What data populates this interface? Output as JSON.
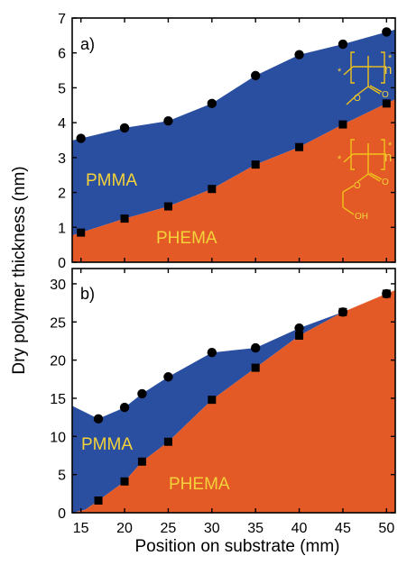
{
  "figure": {
    "ylabel": "Dry polymer thickness   (nm)",
    "xlabel": "Position on substrate   (mm)",
    "colors": {
      "pmma_fill": "#2a4ea0",
      "phema_fill": "#e45a27",
      "label_text": "#f3d23a",
      "structure_stroke": "#f0c21a",
      "axis": "#000000"
    },
    "structure_labels": {
      "pmma_n": "n",
      "phema_n": "n",
      "ester_o": "O",
      "hydroxyl": "OH",
      "star": "*"
    }
  },
  "chart_data": [
    {
      "type": "area",
      "panel_label": "a)",
      "xlim": [
        14,
        51
      ],
      "ylim": [
        0,
        7
      ],
      "xticks": [
        15,
        20,
        25,
        30,
        35,
        40,
        45,
        50
      ],
      "yticks": [
        0,
        1,
        2,
        3,
        4,
        5,
        6,
        7
      ],
      "region_labels": [
        "PMMA",
        "PHEMA"
      ],
      "series": [
        {
          "marker": "circle",
          "x": [
            15,
            20,
            25,
            30,
            35,
            40,
            45,
            50
          ],
          "values": [
            3.55,
            3.85,
            4.05,
            4.55,
            5.35,
            5.95,
            6.25,
            6.6
          ]
        },
        {
          "marker": "square",
          "x": [
            15,
            20,
            25,
            30,
            35,
            40,
            45,
            50
          ],
          "values": [
            0.85,
            1.25,
            1.6,
            2.1,
            2.8,
            3.3,
            3.95,
            4.55
          ]
        }
      ]
    },
    {
      "type": "area",
      "panel_label": "b)",
      "xlim": [
        14,
        51
      ],
      "ylim": [
        0,
        32
      ],
      "xticks": [
        15,
        20,
        25,
        30,
        35,
        40,
        45,
        50
      ],
      "yticks": [
        0,
        5,
        10,
        15,
        20,
        25,
        30
      ],
      "region_labels": [
        "PMMA",
        "PHEMA"
      ],
      "series": [
        {
          "marker": "circle",
          "x": [
            17,
            20,
            22,
            25,
            30,
            35,
            40,
            45,
            50
          ],
          "values": [
            12.3,
            13.8,
            15.6,
            17.8,
            21.0,
            21.6,
            24.2,
            26.3,
            28.7
          ]
        },
        {
          "marker": "square",
          "x": [
            17,
            20,
            22,
            25,
            30,
            35,
            40,
            45,
            50
          ],
          "values": [
            1.6,
            4.1,
            6.7,
            9.3,
            14.8,
            19.0,
            23.2,
            26.3,
            28.7
          ]
        }
      ]
    }
  ]
}
